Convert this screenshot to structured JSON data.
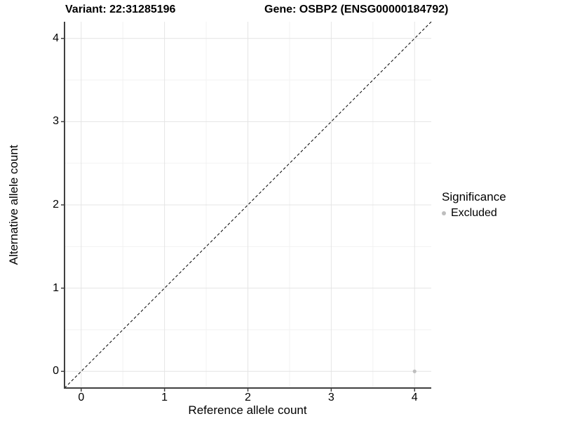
{
  "titles": {
    "variant": "Variant: 22:31285196",
    "gene": "Gene: OSBP2 (ENSG00000184792)"
  },
  "axes": {
    "x_label": "Reference allele count",
    "y_label": "Alternative allele count",
    "x_tick_labels": [
      "0",
      "1",
      "2",
      "3",
      "4"
    ],
    "y_tick_labels": [
      "0",
      "1",
      "2",
      "3",
      "4"
    ]
  },
  "legend": {
    "title": "Significance",
    "items": [
      {
        "label": "Excluded",
        "color": "#bebebe"
      }
    ]
  },
  "colors": {
    "background": "#ffffff",
    "text": "#000000",
    "grid_major": "#e4e4e4",
    "grid_minor": "#f2f2f2",
    "axis_line": "#404040",
    "identity_line": "#000000",
    "point": "#bebebe"
  },
  "chart_data": {
    "type": "scatter",
    "title": "Variant: 22:31285196 | Gene: OSBP2 (ENSG00000184792)",
    "xlabel": "Reference allele count",
    "ylabel": "Alternative allele count",
    "xlim": [
      -0.2,
      4.2
    ],
    "ylim": [
      -0.2,
      4.2
    ],
    "x_ticks": [
      0,
      1,
      2,
      3,
      4
    ],
    "y_ticks": [
      0,
      1,
      2,
      3,
      4
    ],
    "minor_x_ticks": [
      0.5,
      1.5,
      2.5,
      3.5
    ],
    "minor_y_ticks": [
      0.5,
      1.5,
      2.5,
      3.5
    ],
    "grid": "on",
    "legend_position": "right",
    "series": [
      {
        "name": "Excluded",
        "color": "#bebebe",
        "points": [
          {
            "x": 4,
            "y": 0
          }
        ]
      }
    ],
    "annotations": [
      {
        "type": "identity-line",
        "style": "dashed",
        "from": [
          -0.2,
          -0.2
        ],
        "to": [
          4.2,
          4.2
        ],
        "color": "#000000"
      }
    ]
  }
}
